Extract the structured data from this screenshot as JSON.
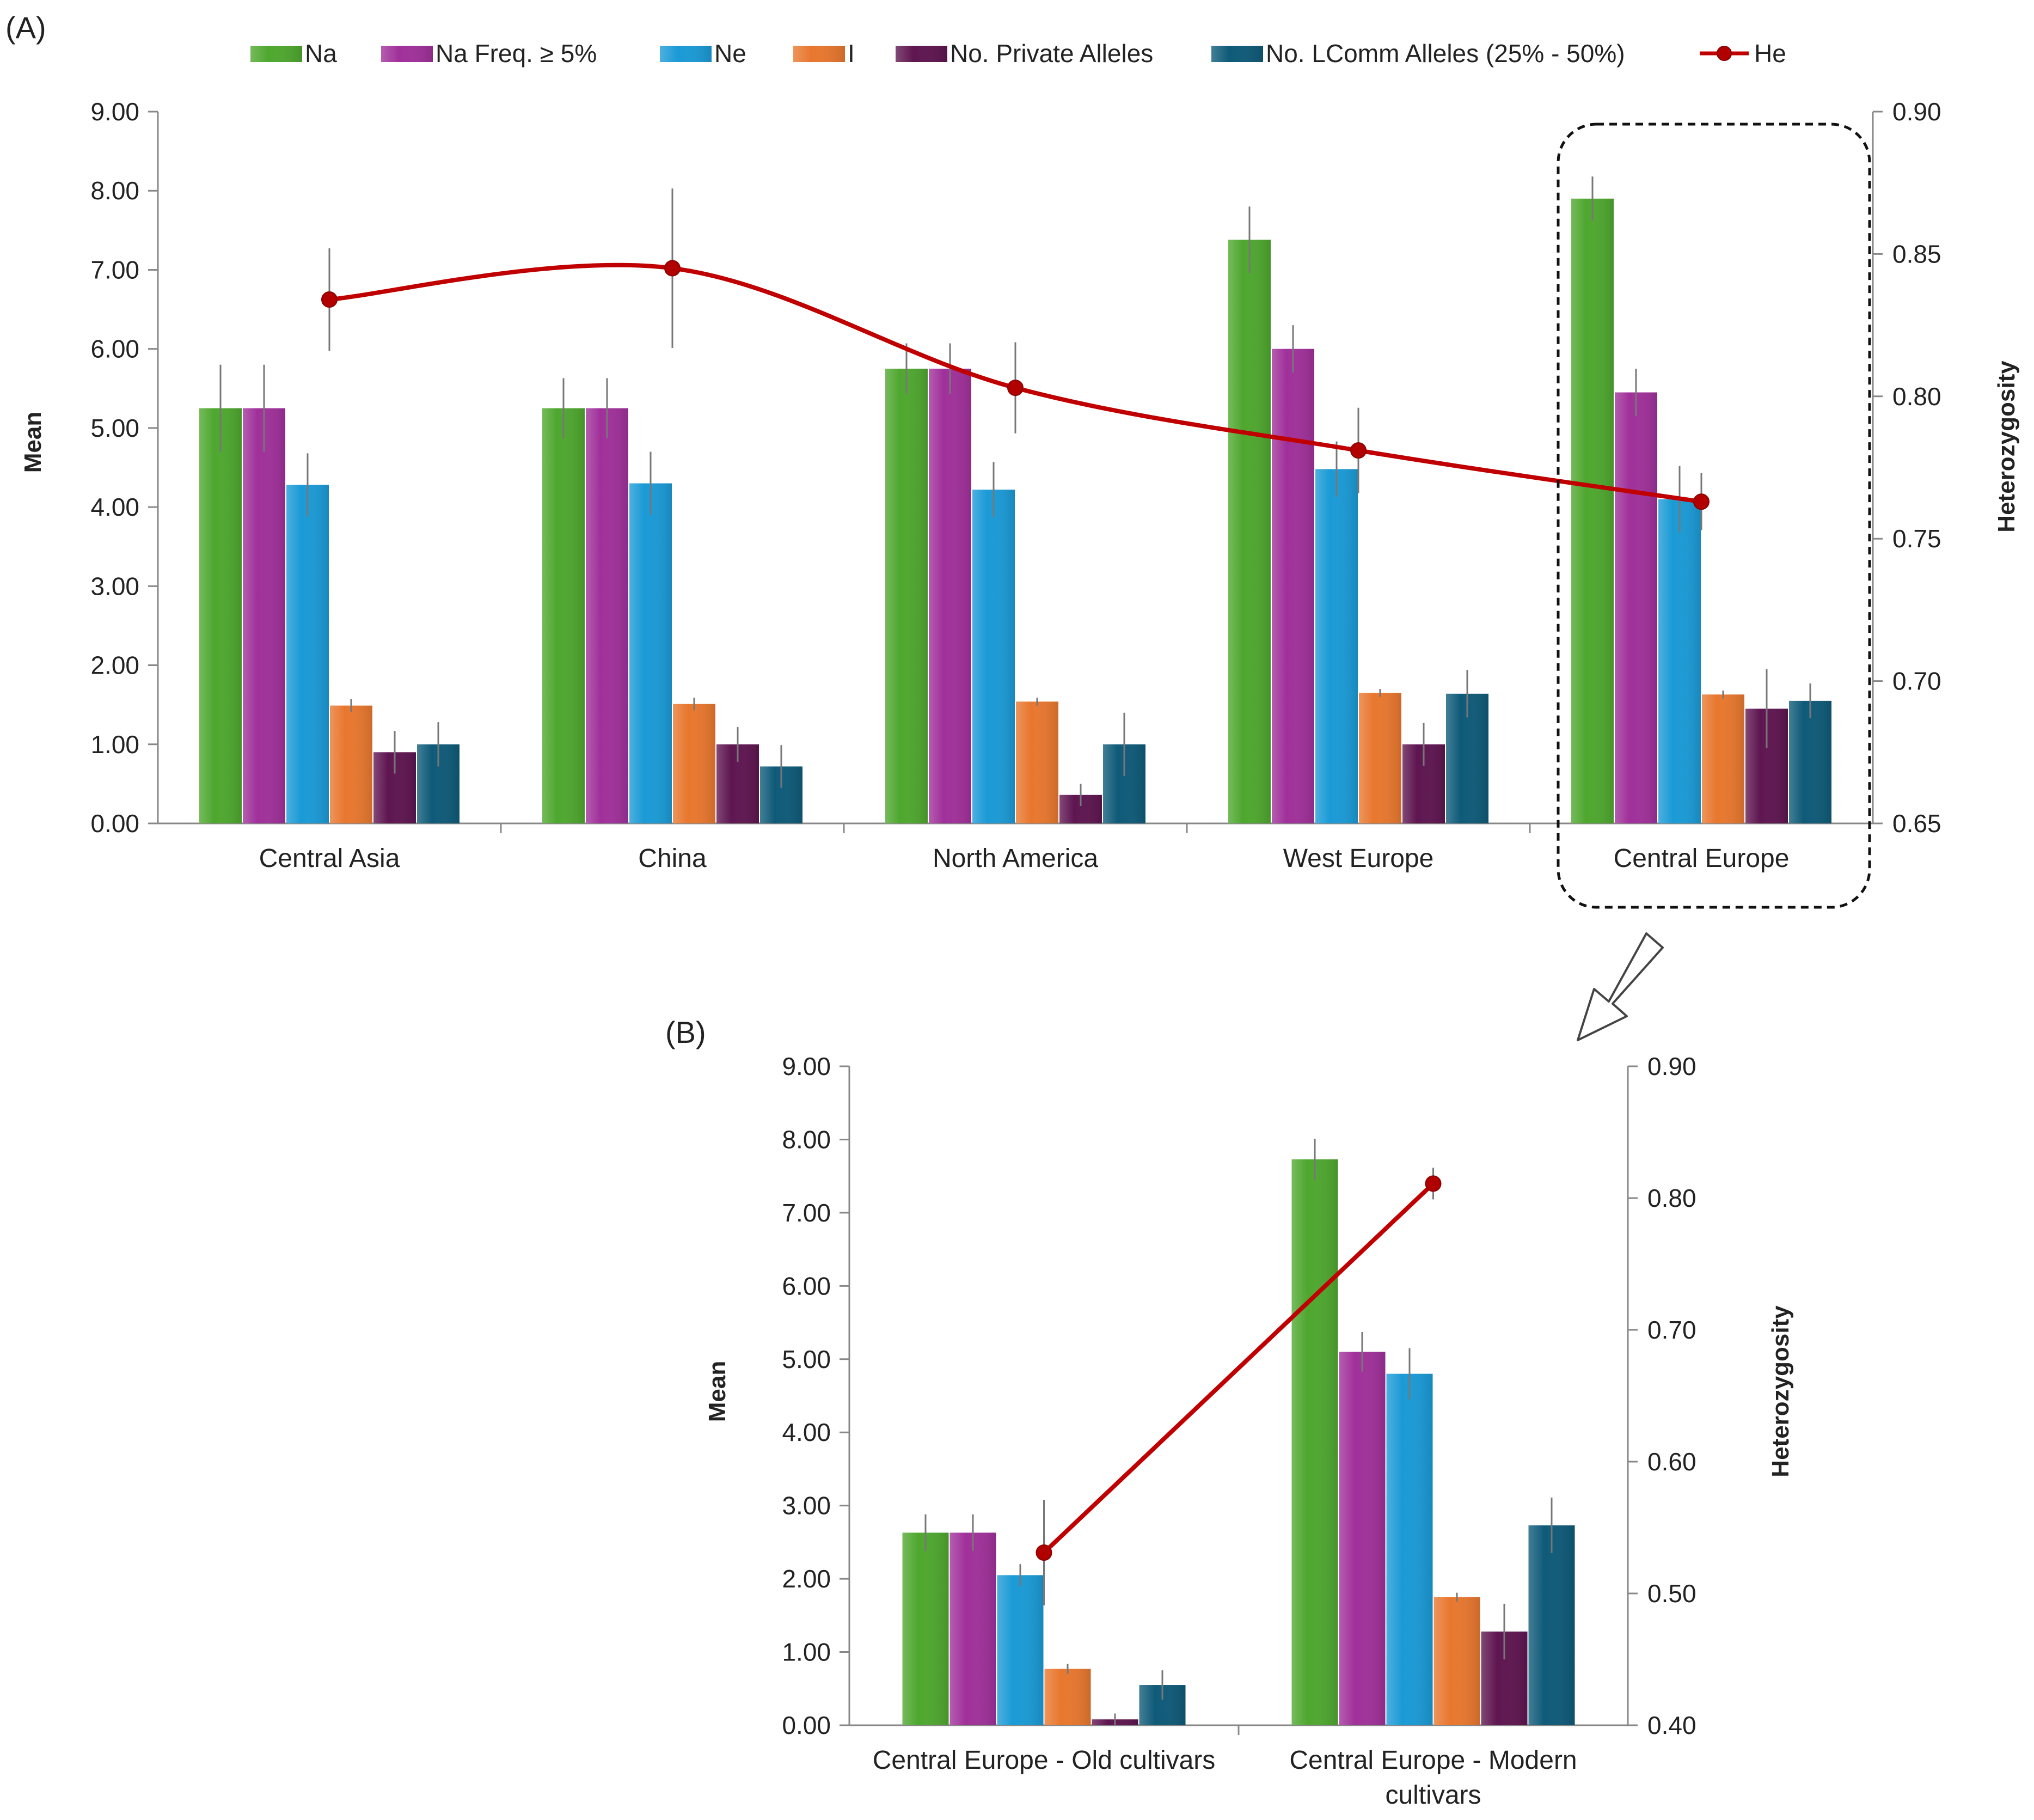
{
  "panel_labels": {
    "a": "(A)",
    "b": "(B)"
  },
  "legend": [
    {
      "label": "Na",
      "color": "#4ea72e"
    },
    {
      "label": "Na Freq. ≥ 5%",
      "color": "#a0309a"
    },
    {
      "label": "Ne",
      "color": "#1a9ad6"
    },
    {
      "label": "I",
      "color": "#e8772e"
    },
    {
      "label": "No. Private Alleles",
      "color": "#5e1550"
    },
    {
      "label": "No. LComm Alleles (25% - 50%)",
      "color": "#0e5a78"
    },
    {
      "label": "He",
      "color": "#c00000"
    }
  ],
  "chart_data": [
    {
      "type": "bar",
      "title": "",
      "ylabel": "Mean",
      "y2label": "Heterozygosity",
      "ylim": [
        0,
        9
      ],
      "y2lim": [
        0.65,
        0.9
      ],
      "yticks": [
        "0.00",
        "1.00",
        "2.00",
        "3.00",
        "4.00",
        "5.00",
        "6.00",
        "7.00",
        "8.00",
        "9.00"
      ],
      "y2ticks": [
        "0.65",
        "0.70",
        "0.75",
        "0.80",
        "0.85",
        "0.90"
      ],
      "grid": false,
      "legend_position": "top",
      "categories": [
        "Central Asia",
        "China",
        "North America",
        "West Europe",
        "Central Europe"
      ],
      "series": [
        {
          "name": "Na",
          "values": [
            5.25,
            5.25,
            5.75,
            7.38,
            7.9
          ],
          "errors": [
            0.55,
            0.38,
            0.32,
            0.42,
            0.28
          ]
        },
        {
          "name": "Na Freq. ≥ 5%",
          "values": [
            5.25,
            5.25,
            5.75,
            6.0,
            5.45
          ],
          "errors": [
            0.55,
            0.38,
            0.32,
            0.3,
            0.3
          ]
        },
        {
          "name": "Ne",
          "values": [
            4.28,
            4.3,
            4.22,
            4.48,
            4.1
          ],
          "errors": [
            0.4,
            0.4,
            0.35,
            0.35,
            0.42
          ]
        },
        {
          "name": "I",
          "values": [
            1.49,
            1.51,
            1.54,
            1.65,
            1.63
          ],
          "errors": [
            0.08,
            0.08,
            0.05,
            0.05,
            0.05
          ]
        },
        {
          "name": "No. Private Alleles",
          "values": [
            0.9,
            1.0,
            0.36,
            1.0,
            1.45
          ],
          "errors": [
            0.27,
            0.22,
            0.14,
            0.27,
            0.5
          ]
        },
        {
          "name": "No. LComm Alleles (25% - 50%)",
          "values": [
            1.0,
            0.72,
            1.0,
            1.64,
            1.55
          ],
          "errors": [
            0.28,
            0.27,
            0.4,
            0.3,
            0.22
          ]
        }
      ],
      "line_series": {
        "name": "He",
        "values": [
          0.834,
          0.845,
          0.803,
          0.781,
          0.763
        ],
        "errors": [
          0.018,
          0.028,
          0.016,
          0.015,
          0.01
        ]
      },
      "highlight_category": "Central Europe"
    },
    {
      "type": "bar",
      "title": "",
      "ylabel": "Mean",
      "y2label": "Heterozygosity",
      "ylim": [
        0,
        9
      ],
      "y2lim": [
        0.4,
        0.9
      ],
      "yticks": [
        "0.00",
        "1.00",
        "2.00",
        "3.00",
        "4.00",
        "5.00",
        "6.00",
        "7.00",
        "8.00",
        "9.00"
      ],
      "y2ticks": [
        "0.40",
        "0.50",
        "0.60",
        "0.70",
        "0.80",
        "0.90"
      ],
      "grid": false,
      "categories": [
        "Central Europe - Old cultivars",
        "Central Europe - Modern cultivars"
      ],
      "series": [
        {
          "name": "Na",
          "values": [
            2.63,
            7.73
          ],
          "errors": [
            0.25,
            0.28
          ]
        },
        {
          "name": "Na Freq. ≥ 5%",
          "values": [
            2.63,
            5.1
          ],
          "errors": [
            0.25,
            0.27
          ]
        },
        {
          "name": "Ne",
          "values": [
            2.05,
            4.8
          ],
          "errors": [
            0.15,
            0.35
          ]
        },
        {
          "name": "I",
          "values": [
            0.77,
            1.75
          ],
          "errors": [
            0.07,
            0.06
          ]
        },
        {
          "name": "No. Private Alleles",
          "values": [
            0.08,
            1.28
          ],
          "errors": [
            0.08,
            0.38
          ]
        },
        {
          "name": "No. LComm Alleles (25% - 50%)",
          "values": [
            0.55,
            2.73
          ],
          "errors": [
            0.2,
            0.38
          ]
        }
      ],
      "line_series": {
        "name": "He",
        "values": [
          0.531,
          0.811
        ],
        "errors": [
          0.04,
          0.012
        ]
      }
    }
  ]
}
